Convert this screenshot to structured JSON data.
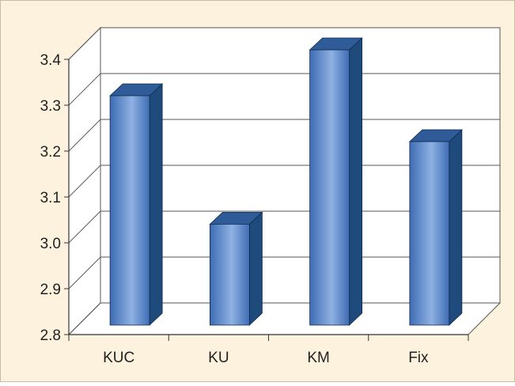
{
  "chart_data": {
    "type": "bar",
    "style": "3d-column",
    "categories": [
      "KUC",
      "KU",
      "KM",
      "Fix"
    ],
    "values": [
      3.3,
      3.02,
      3.4,
      3.2
    ],
    "ylim": [
      2.8,
      3.4
    ],
    "yticks": [
      "2.8",
      "2.9",
      "3.0",
      "3.1",
      "3.2",
      "3.3",
      "3.4"
    ],
    "title": "",
    "xlabel": "",
    "ylabel": "",
    "grid": true,
    "legend": "none",
    "colors": {
      "background": "#FDF2DD",
      "plot_border": "#C9BCA4",
      "walls": "#FFFFFF",
      "gridline": "#555555",
      "bar_front_dark": "#3E6CB4",
      "bar_front_light": "#8FB1E3",
      "bar_top": "#2F5C98",
      "bar_side": "#1F4A7C"
    }
  }
}
